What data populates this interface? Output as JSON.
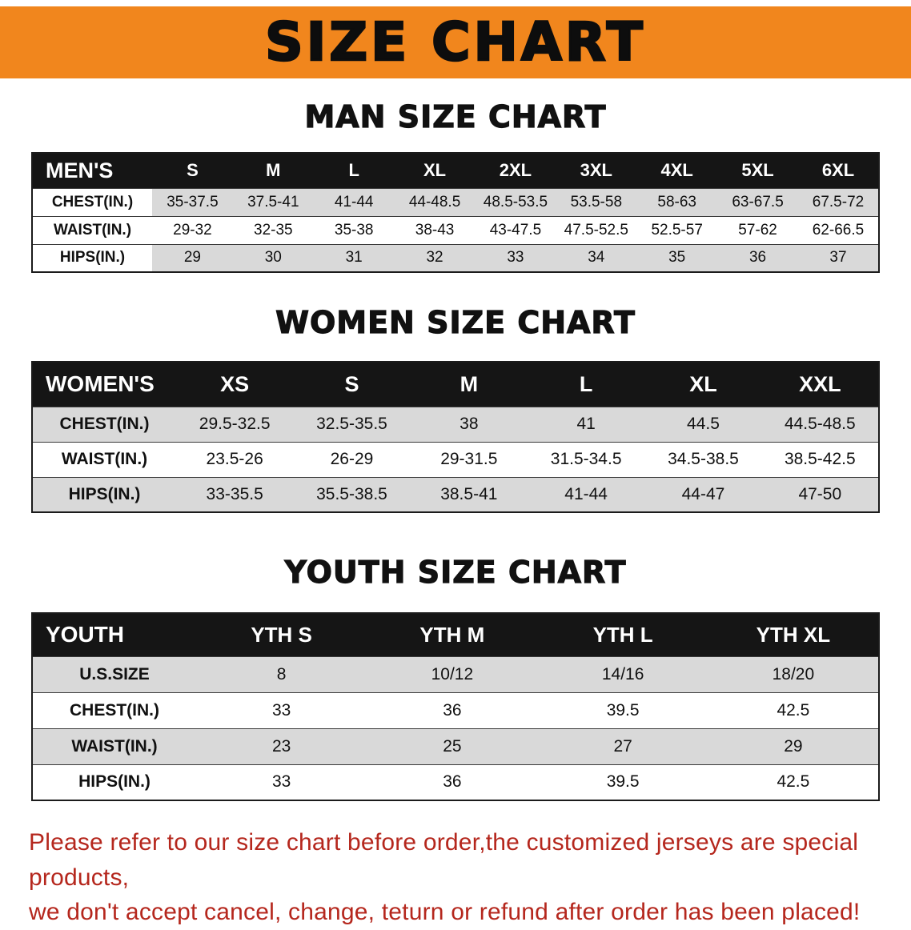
{
  "banner": {
    "title": "SIZE CHART"
  },
  "colors": {
    "banner_bg": "#f1861d",
    "header_bg": "#151515",
    "stripe": "#d9d9d9",
    "note_red": "#b5271d"
  },
  "sections": [
    {
      "heading": "MAN SIZE CHART",
      "table": {
        "header": [
          "MEN'S",
          "S",
          "M",
          "L",
          "XL",
          "2XL",
          "3XL",
          "4XL",
          "5XL",
          "6XL"
        ],
        "rows": [
          [
            "CHEST(IN.)",
            "35-37.5",
            "37.5-41",
            "41-44",
            "44-48.5",
            "48.5-53.5",
            "53.5-58",
            "58-63",
            "63-67.5",
            "67.5-72"
          ],
          [
            "WAIST(IN.)",
            "29-32",
            "32-35",
            "35-38",
            "38-43",
            "43-47.5",
            "47.5-52.5",
            "52.5-57",
            "57-62",
            "62-66.5"
          ],
          [
            "HIPS(IN.)",
            "29",
            "30",
            "31",
            "32",
            "33",
            "34",
            "35",
            "36",
            "37"
          ]
        ]
      }
    },
    {
      "heading": "WOMEN SIZE CHART",
      "table": {
        "header": [
          "WOMEN'S",
          "XS",
          "S",
          "M",
          "L",
          "XL",
          "XXL"
        ],
        "rows": [
          [
            "CHEST(IN.)",
            "29.5-32.5",
            "32.5-35.5",
            "38",
            "41",
            "44.5",
            "44.5-48.5"
          ],
          [
            "WAIST(IN.)",
            "23.5-26",
            "26-29",
            "29-31.5",
            "31.5-34.5",
            "34.5-38.5",
            "38.5-42.5"
          ],
          [
            "HIPS(IN.)",
            "33-35.5",
            "35.5-38.5",
            "38.5-41",
            "41-44",
            "44-47",
            "47-50"
          ]
        ]
      }
    },
    {
      "heading": "YOUTH SIZE CHART",
      "table": {
        "header": [
          "YOUTH",
          "YTH S",
          "YTH M",
          "YTH L",
          "YTH XL"
        ],
        "rows": [
          [
            "U.S.SIZE",
            "8",
            "10/12",
            "14/16",
            "18/20"
          ],
          [
            "CHEST(IN.)",
            "33",
            "36",
            "39.5",
            "42.5"
          ],
          [
            "WAIST(IN.)",
            "23",
            "25",
            "27",
            "29"
          ],
          [
            "HIPS(IN.)",
            "33",
            "36",
            "39.5",
            "42.5"
          ]
        ]
      }
    }
  ],
  "note": {
    "line1": "Please refer to our size chart before order,the customized jerseys are special products,",
    "line2": "we don't accept cancel, change, teturn or refund after order has been placed!"
  }
}
